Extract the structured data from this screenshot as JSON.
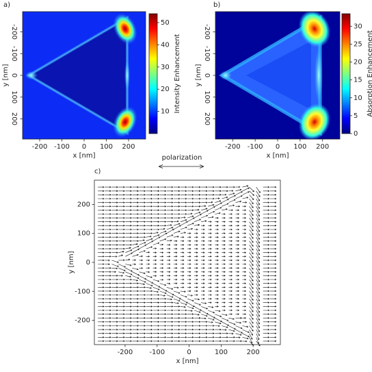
{
  "chart_data": [
    {
      "type": "heatmap",
      "panel_label": "a)",
      "xlabel": "x [nm]",
      "ylabel": "y [nm]",
      "xlim": [
        -277,
        277
      ],
      "ylim": [
        293,
        -293
      ],
      "xticks": [
        -200,
        -100,
        0,
        100,
        200
      ],
      "yticks": [
        -200,
        -100,
        0,
        100,
        200
      ],
      "colorbar": {
        "label": "Intensity Enhancement",
        "lim": [
          0,
          54
        ],
        "ticks": [
          10,
          20,
          30,
          40,
          50
        ]
      }
    },
    {
      "type": "heatmap",
      "panel_label": "b)",
      "xlabel": "x [nm]",
      "ylabel": "y [nm]",
      "xlim": [
        -277,
        277
      ],
      "ylim": [
        293,
        -293
      ],
      "xticks": [
        -200,
        -100,
        0,
        100,
        200
      ],
      "yticks": [
        -200,
        -100,
        0,
        100,
        200
      ],
      "colorbar": {
        "label": "Absorption Enhancement",
        "lim": [
          0,
          33.5
        ],
        "ticks": [
          0,
          5,
          10,
          15,
          20,
          25,
          30
        ]
      }
    },
    {
      "type": "quiver",
      "panel_label": "c)",
      "xlabel": "x [nm]",
      "ylabel": "y [nm]",
      "xlim": [
        -296,
        285
      ],
      "ylim": [
        -284,
        284
      ],
      "xticks": [
        -200,
        -100,
        0,
        100,
        200
      ],
      "yticks": [
        -200,
        -100,
        0,
        100,
        200
      ]
    }
  ],
  "annotation": "polarization"
}
